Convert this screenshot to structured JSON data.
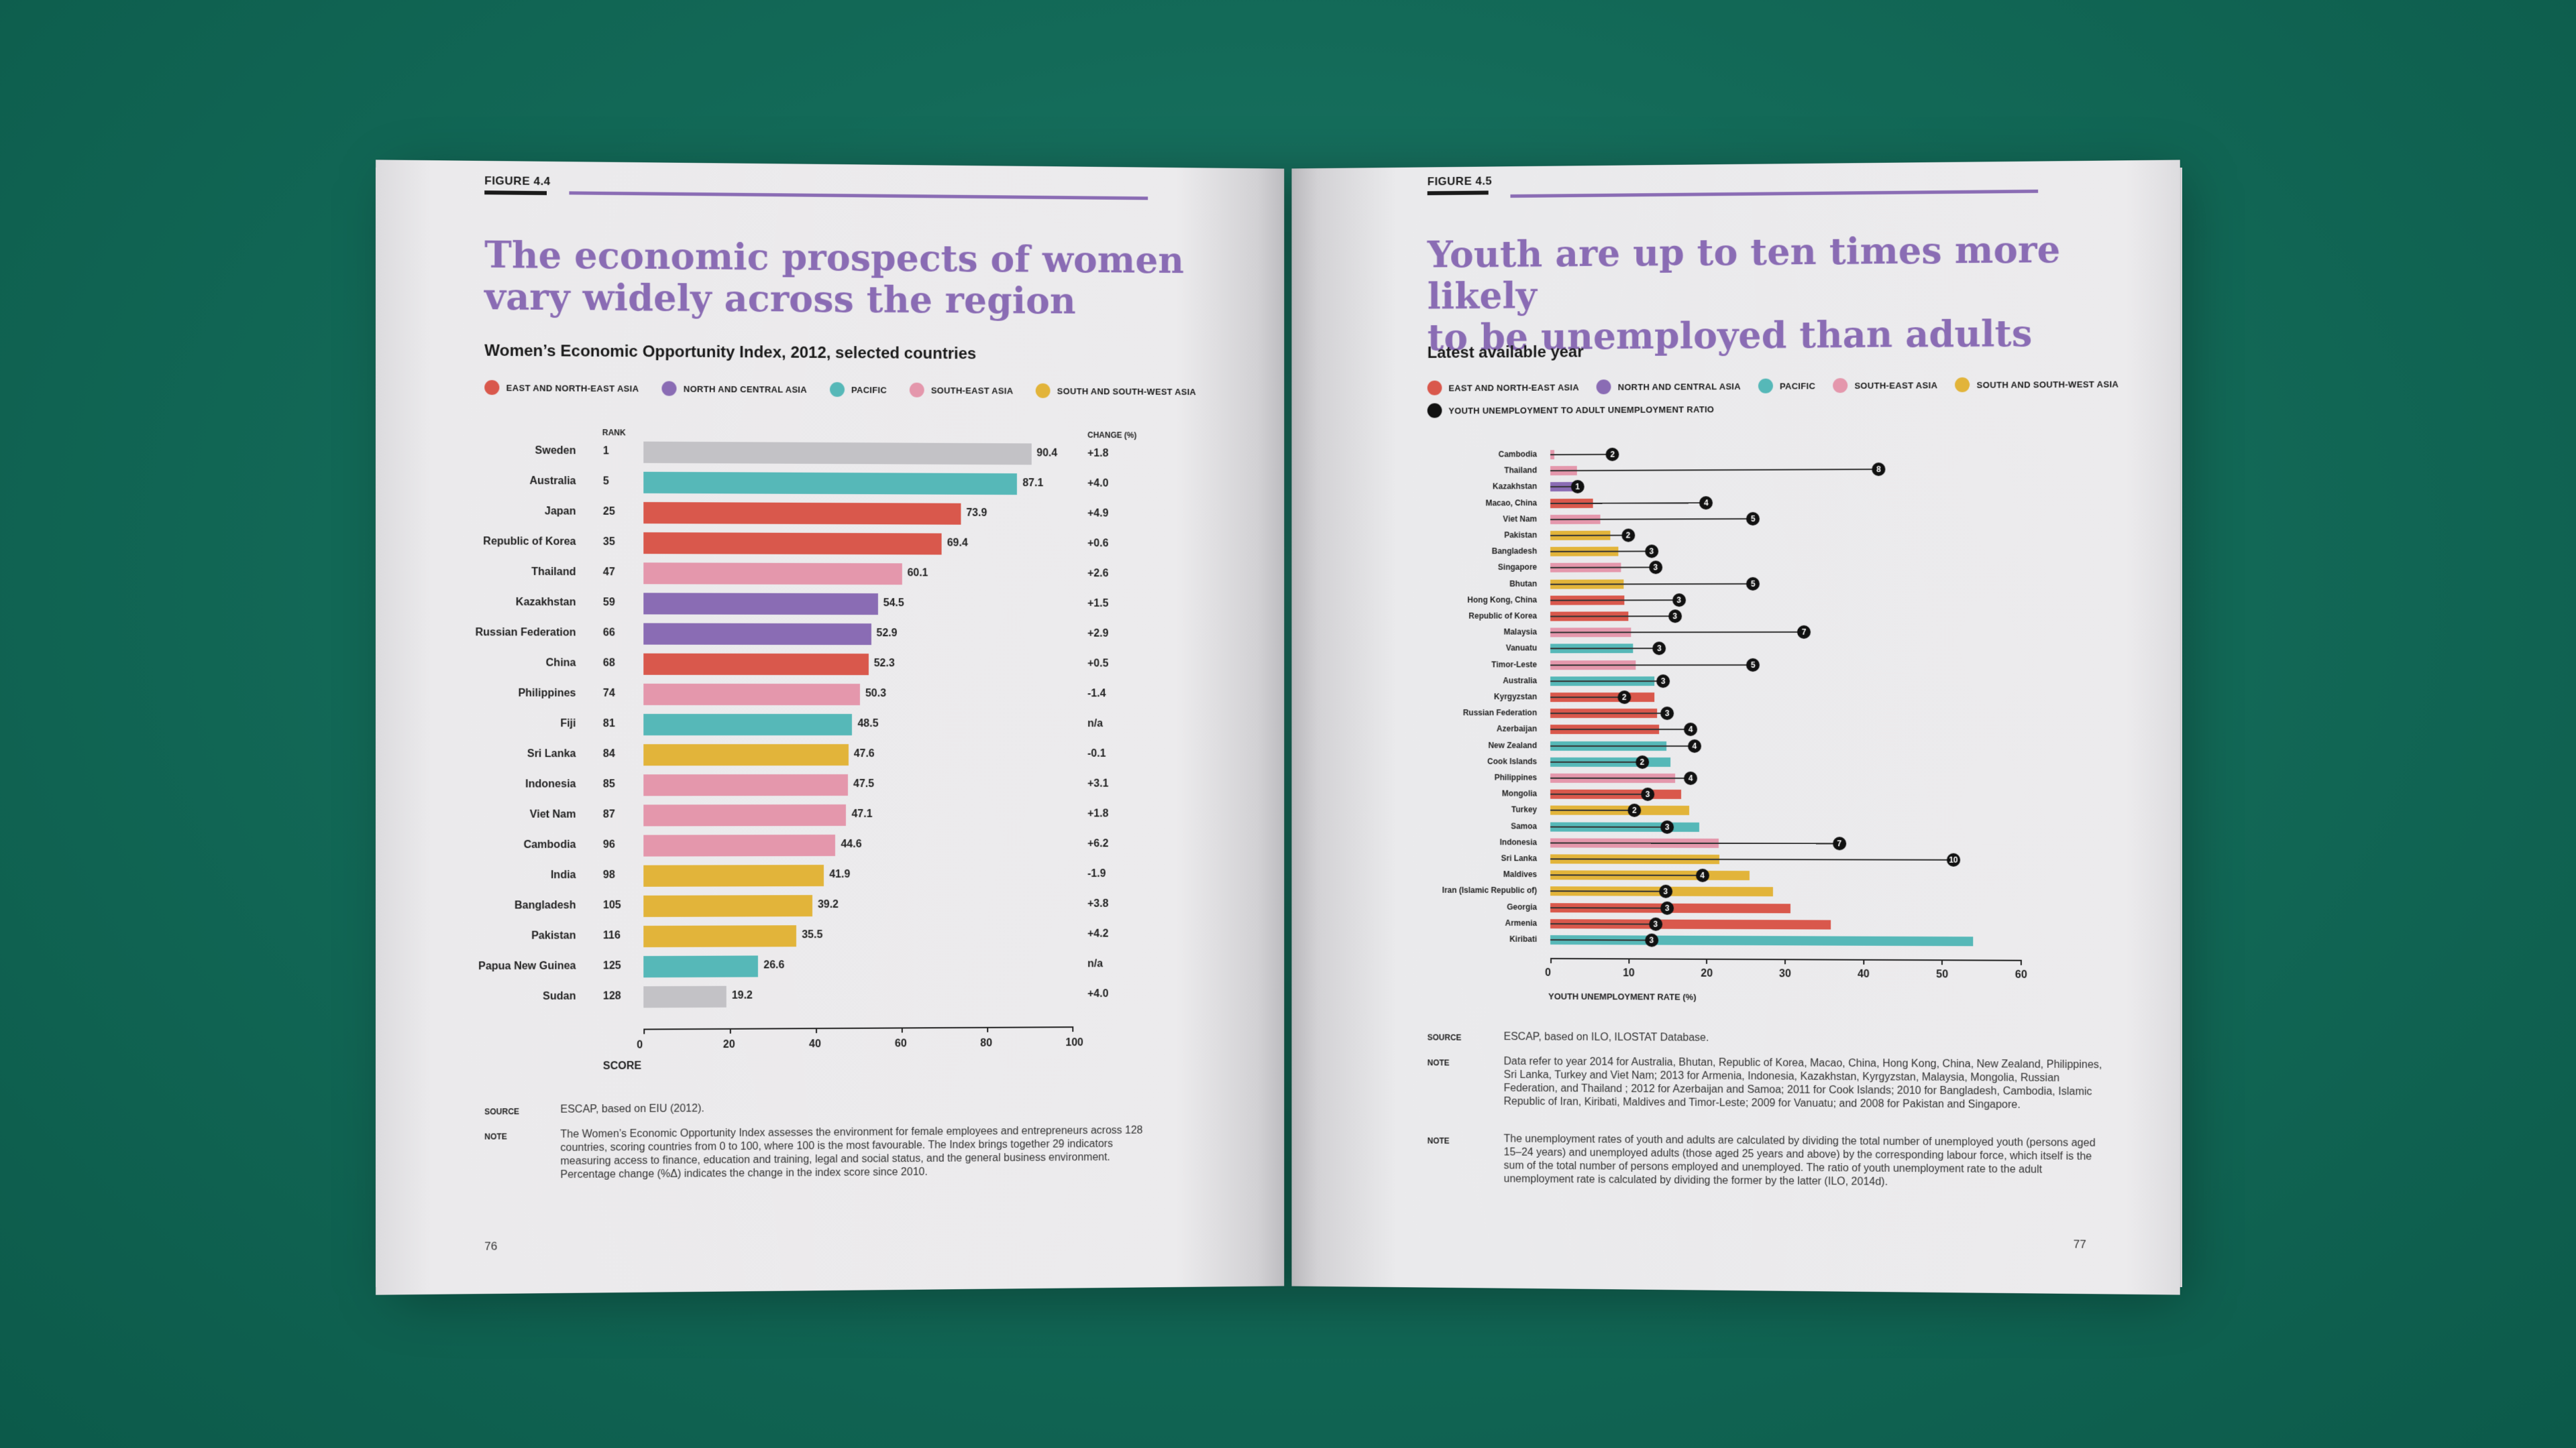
{
  "left": {
    "figure_label": "FIGURE 4.4",
    "title_line1": "The economic prospects of women",
    "title_line2": "vary widely across the region",
    "subtitle": "Women’s Economic Opportunity Index, 2012, selected countries",
    "legend": [
      {
        "label": "EAST AND NORTH-EAST ASIA",
        "color": "#d9584c"
      },
      {
        "label": "NORTH AND CENTRAL ASIA",
        "color": "#8a6cb4"
      },
      {
        "label": "PACIFIC",
        "color": "#56b8b8"
      },
      {
        "label": "SOUTH-EAST ASIA",
        "color": "#e497ac"
      },
      {
        "label": "SOUTH AND SOUTH-WEST ASIA",
        "color": "#e2b43a"
      }
    ],
    "col_rank": "RANK",
    "col_change": "CHANGE (%)",
    "axis_label": "SCORE",
    "source_key": "SOURCE",
    "source_text": "ESCAP, based on EIU (2012).",
    "note_key": "NOTE",
    "note_text": "The Women’s Economic Opportunity Index assesses the environment for female employees and entrepreneurs across 128 countries, scoring countries from 0 to 100, where 100 is the most favourable. The Index brings together 29 indicators measuring access to finance, education and training, legal and social status, and the general business environment. Percentage change (%Δ) indicates the change in the index score since 2010.",
    "page_number": "76"
  },
  "right": {
    "figure_label": "FIGURE 4.5",
    "title_line1": "Youth are up to ten times more likely",
    "title_line2": "to be unemployed than adults",
    "subtitle": "Latest available year",
    "legend": [
      {
        "label": "EAST AND NORTH-EAST ASIA",
        "color": "#d9584c"
      },
      {
        "label": "NORTH AND CENTRAL ASIA",
        "color": "#8a6cb4"
      },
      {
        "label": "PACIFIC",
        "color": "#56b8b8"
      },
      {
        "label": "SOUTH-EAST ASIA",
        "color": "#e497ac"
      },
      {
        "label": "SOUTH AND SOUTH-WEST ASIA",
        "color": "#e2b43a"
      }
    ],
    "legend_ratio": {
      "label": "YOUTH UNEMPLOYMENT TO ADULT UNEMPLOYMENT RATIO",
      "color": "#111111"
    },
    "axis_label": "YOUTH UNEMPLOYMENT RATE (%)",
    "source_key": "SOURCE",
    "source_text": "ESCAP, based on ILO, ILOSTAT Database.",
    "note1_key": "NOTE",
    "note1_text": "Data refer to year 2014 for Australia, Bhutan, Republic of Korea, Macao, China, Hong Kong, China, New Zealand, Philippines, Sri Lanka, Turkey and Viet Nam; 2013 for Armenia, Indonesia, Kazakhstan, Kyrgyzstan, Malaysia, Mongolia, Russian Federation, and Thailand ; 2012 for Azerbaijan and Samoa; 2011 for Cook Islands; 2010 for Bangladesh, Cambodia, Islamic Republic of Iran, Kiribati, Maldives and Timor-Leste; 2009 for Vanuatu; and 2008 for Pakistan and Singapore.",
    "note2_key": "NOTE",
    "note2_text": "The unemployment rates of youth and adults are calculated by dividing the total number of unemployed youth (persons aged 15–24 years) and unemployed adults (those aged 25 years and above) by the corresponding labour force, which itself is the sum of the total number of persons employed and unemployed. The ratio of youth unemployment rate to the adult unemployment rate is calculated by dividing the former by the latter (ILO, 2014d).",
    "page_number": "77"
  },
  "chart_data": [
    {
      "type": "bar",
      "orientation": "horizontal",
      "title": "Women’s Economic Opportunity Index, 2012, selected countries",
      "xlabel": "SCORE",
      "xlim": [
        0,
        100
      ],
      "xticks": [
        0,
        20,
        40,
        60,
        80,
        100
      ],
      "rows": [
        {
          "country": "Sweden",
          "rank": "1",
          "value": 90.4,
          "change": "+1.8",
          "color": "#c3c2c6"
        },
        {
          "country": "Australia",
          "rank": "5",
          "value": 87.1,
          "change": "+4.0",
          "color": "#56b8b8"
        },
        {
          "country": "Japan",
          "rank": "25",
          "value": 73.9,
          "change": "+4.9",
          "color": "#d9584c"
        },
        {
          "country": "Republic of Korea",
          "rank": "35",
          "value": 69.4,
          "change": "+0.6",
          "color": "#d9584c"
        },
        {
          "country": "Thailand",
          "rank": "47",
          "value": 60.1,
          "change": "+2.6",
          "color": "#e497ac"
        },
        {
          "country": "Kazakhstan",
          "rank": "59",
          "value": 54.5,
          "change": "+1.5",
          "color": "#8a6cb4"
        },
        {
          "country": "Russian Federation",
          "rank": "66",
          "value": 52.9,
          "change": "+2.9",
          "color": "#8a6cb4"
        },
        {
          "country": "China",
          "rank": "68",
          "value": 52.3,
          "change": "+0.5",
          "color": "#d9584c"
        },
        {
          "country": "Philippines",
          "rank": "74",
          "value": 50.3,
          "change": "-1.4",
          "color": "#e497ac"
        },
        {
          "country": "Fiji",
          "rank": "81",
          "value": 48.5,
          "change": "n/a",
          "color": "#56b8b8"
        },
        {
          "country": "Sri Lanka",
          "rank": "84",
          "value": 47.6,
          "change": "-0.1",
          "color": "#e2b43a"
        },
        {
          "country": "Indonesia",
          "rank": "85",
          "value": 47.5,
          "change": "+3.1",
          "color": "#e497ac"
        },
        {
          "country": "Viet Nam",
          "rank": "87",
          "value": 47.1,
          "change": "+1.8",
          "color": "#e497ac"
        },
        {
          "country": "Cambodia",
          "rank": "96",
          "value": 44.6,
          "change": "+6.2",
          "color": "#e497ac"
        },
        {
          "country": "India",
          "rank": "98",
          "value": 41.9,
          "change": "-1.9",
          "color": "#e2b43a"
        },
        {
          "country": "Bangladesh",
          "rank": "105",
          "value": 39.2,
          "change": "+3.8",
          "color": "#e2b43a"
        },
        {
          "country": "Pakistan",
          "rank": "116",
          "value": 35.5,
          "change": "+4.2",
          "color": "#e2b43a"
        },
        {
          "country": "Papua New Guinea",
          "rank": "125",
          "value": 26.6,
          "change": "n/a",
          "color": "#56b8b8"
        },
        {
          "country": "Sudan",
          "rank": "128",
          "value": 19.2,
          "change": "+4.0",
          "color": "#c3c2c6"
        }
      ]
    },
    {
      "type": "bar",
      "orientation": "horizontal",
      "title": "Latest available year",
      "xlabel": "YOUTH UNEMPLOYMENT RATE (%)",
      "xlim": [
        0,
        60
      ],
      "xticks": [
        0,
        10,
        20,
        30,
        40,
        50,
        60
      ],
      "rows": [
        {
          "country": "Cambodia",
          "rate": 0.5,
          "ratio": 2,
          "ratio_pos": 8,
          "color": "#e497ac"
        },
        {
          "country": "Thailand",
          "rate": 3.4,
          "ratio": 8,
          "ratio_pos": 42,
          "color": "#e497ac"
        },
        {
          "country": "Kazakhstan",
          "rate": 3.8,
          "ratio": 1,
          "ratio_pos": 3.5,
          "color": "#8a6cb4"
        },
        {
          "country": "Macao, China",
          "rate": 5.5,
          "ratio": 4,
          "ratio_pos": 20,
          "color": "#d9584c"
        },
        {
          "country": "Viet Nam",
          "rate": 6.4,
          "ratio": 5,
          "ratio_pos": 26,
          "color": "#e497ac"
        },
        {
          "country": "Pakistan",
          "rate": 7.7,
          "ratio": 2,
          "ratio_pos": 10,
          "color": "#e2b43a"
        },
        {
          "country": "Bangladesh",
          "rate": 8.7,
          "ratio": 3,
          "ratio_pos": 13,
          "color": "#e2b43a"
        },
        {
          "country": "Singapore",
          "rate": 9.1,
          "ratio": 3,
          "ratio_pos": 13.5,
          "color": "#e497ac"
        },
        {
          "country": "Bhutan",
          "rate": 9.4,
          "ratio": 5,
          "ratio_pos": 26,
          "color": "#e2b43a"
        },
        {
          "country": "Hong Kong, China",
          "rate": 9.5,
          "ratio": 3,
          "ratio_pos": 16.5,
          "color": "#d9584c"
        },
        {
          "country": "Republic of Korea",
          "rate": 10.0,
          "ratio": 3,
          "ratio_pos": 16,
          "color": "#d9584c"
        },
        {
          "country": "Malaysia",
          "rate": 10.4,
          "ratio": 7,
          "ratio_pos": 32.5,
          "color": "#e497ac"
        },
        {
          "country": "Vanuatu",
          "rate": 10.6,
          "ratio": 3,
          "ratio_pos": 14,
          "color": "#56b8b8"
        },
        {
          "country": "Timor-Leste",
          "rate": 11.0,
          "ratio": 5,
          "ratio_pos": 26,
          "color": "#e497ac"
        },
        {
          "country": "Australia",
          "rate": 13.4,
          "ratio": 3,
          "ratio_pos": 14.5,
          "color": "#56b8b8"
        },
        {
          "country": "Kyrgyzstan",
          "rate": 13.4,
          "ratio": 2,
          "ratio_pos": 9.5,
          "color": "#d9584c"
        },
        {
          "country": "Russian Federation",
          "rate": 13.7,
          "ratio": 3,
          "ratio_pos": 15,
          "color": "#d9584c"
        },
        {
          "country": "Azerbaijan",
          "rate": 14.0,
          "ratio": 4,
          "ratio_pos": 18,
          "color": "#d9584c"
        },
        {
          "country": "New Zealand",
          "rate": 14.9,
          "ratio": 4,
          "ratio_pos": 18.5,
          "color": "#56b8b8"
        },
        {
          "country": "Cook Islands",
          "rate": 15.4,
          "ratio": 2,
          "ratio_pos": 11.8,
          "color": "#56b8b8"
        },
        {
          "country": "Philippines",
          "rate": 16.0,
          "ratio": 4,
          "ratio_pos": 18,
          "color": "#e497ac"
        },
        {
          "country": "Mongolia",
          "rate": 16.8,
          "ratio": 3,
          "ratio_pos": 12.5,
          "color": "#d9584c"
        },
        {
          "country": "Turkey",
          "rate": 17.8,
          "ratio": 2,
          "ratio_pos": 10.8,
          "color": "#e2b43a"
        },
        {
          "country": "Samoa",
          "rate": 19.1,
          "ratio": 3,
          "ratio_pos": 15,
          "color": "#56b8b8"
        },
        {
          "country": "Indonesia",
          "rate": 21.6,
          "ratio": 7,
          "ratio_pos": 37,
          "color": "#e497ac"
        },
        {
          "country": "Sri Lanka",
          "rate": 21.7,
          "ratio": 10,
          "ratio_pos": 51.5,
          "color": "#e2b43a"
        },
        {
          "country": "Maldives",
          "rate": 25.5,
          "ratio": 4,
          "ratio_pos": 19.5,
          "color": "#e2b43a"
        },
        {
          "country": "Iran (Islamic Republic of)",
          "rate": 28.5,
          "ratio": 3,
          "ratio_pos": 14.8,
          "color": "#e2b43a"
        },
        {
          "country": "Georgia",
          "rate": 30.8,
          "ratio": 3,
          "ratio_pos": 15,
          "color": "#d9584c"
        },
        {
          "country": "Armenia",
          "rate": 35.9,
          "ratio": 3,
          "ratio_pos": 13.5,
          "color": "#d9584c"
        },
        {
          "country": "Kiribati",
          "rate": 54.0,
          "ratio": 3,
          "ratio_pos": 13,
          "color": "#56b8b8"
        }
      ]
    }
  ]
}
